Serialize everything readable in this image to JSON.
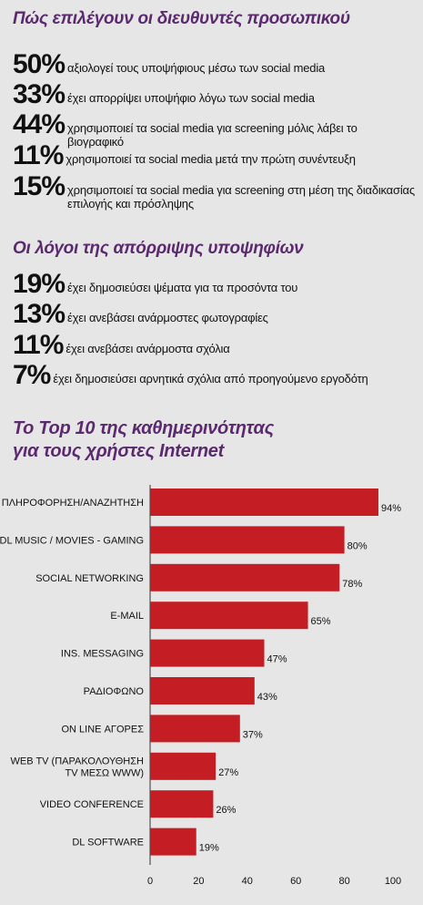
{
  "section1": {
    "title": "Πώς επιλέγουν οι διευθυντές προσωπικού",
    "items": [
      {
        "pct": "50%",
        "text": "αξιολογεί τους υποψήφιους μέσω των social media"
      },
      {
        "pct": "33%",
        "text": "έχει απορρίψει υποψήφιο λόγω των social media"
      },
      {
        "pct": "44%",
        "text": "χρησιμοποιεί τα social media για screening μόλις λάβει το βιογραφικό"
      },
      {
        "pct": "11%",
        "text": "χρησιμοποιεί τα social media μετά την πρώτη συνέντευξη"
      },
      {
        "pct": "15%",
        "text": "χρησιμοποιεί τα social media για screening στη μέση της διαδικασίας επιλογής και πρόσληψης"
      }
    ]
  },
  "section2": {
    "title": "Οι λόγοι της απόρριψης υποψηφίων",
    "items": [
      {
        "pct": "19%",
        "text": "έχει δημοσιεύσει ψέματα για τα προσόντα του"
      },
      {
        "pct": "13%",
        "text": "έχει ανεβάσει ανάρμοστες φωτογραφίες"
      },
      {
        "pct": "11%",
        "text": "έχει ανεβάσει ανάρμοστα σχόλια"
      },
      {
        "pct": "7%",
        "text": "έχει δημοσιεύσει αρνητικά σχόλια από προηγούμενο εργοδότη"
      }
    ]
  },
  "chart_title_line1": "Το Top 10 της καθημερινότητας",
  "chart_title_line2": "για τους χρήστες Internet",
  "colors": {
    "heading": "#5b2a6e",
    "bar": "#c41e24",
    "background": "#e6e6e6"
  },
  "chart_data": {
    "type": "bar",
    "orientation": "horizontal",
    "title": "Το Top 10 της καθημερινότητας για τους χρήστες Internet",
    "categories": [
      [
        "ΠΛΗΡΟΦΟΡΗΣΗ/ΑΝΑΖΗΤΗΣΗ"
      ],
      [
        "DL MUSIC / MOVIES - GAMING"
      ],
      [
        "SOCIAL NETWORKING"
      ],
      [
        "E-MAIL"
      ],
      [
        "INS. MESSAGING"
      ],
      [
        "ΡΑΔΙΟΦΩΝΟ"
      ],
      [
        "ON LINE ΑΓΟΡΕΣ"
      ],
      [
        "WEB TV (ΠΑΡΑΚΟΛΟΥΘΗΣΗ",
        "TV ΜΕΣΩ WWW)"
      ],
      [
        "VIDEO CONFERENCE"
      ],
      [
        "DL SOFTWARE"
      ]
    ],
    "values": [
      94,
      80,
      78,
      65,
      47,
      43,
      37,
      27,
      26,
      19
    ],
    "value_labels": [
      "94%",
      "80%",
      "78%",
      "65%",
      "47%",
      "43%",
      "37%",
      "27%",
      "26%",
      "19%"
    ],
    "xlim": [
      0,
      100
    ],
    "xticks": [
      0,
      20,
      40,
      60,
      80,
      100
    ],
    "grid": false,
    "legend": "none"
  }
}
